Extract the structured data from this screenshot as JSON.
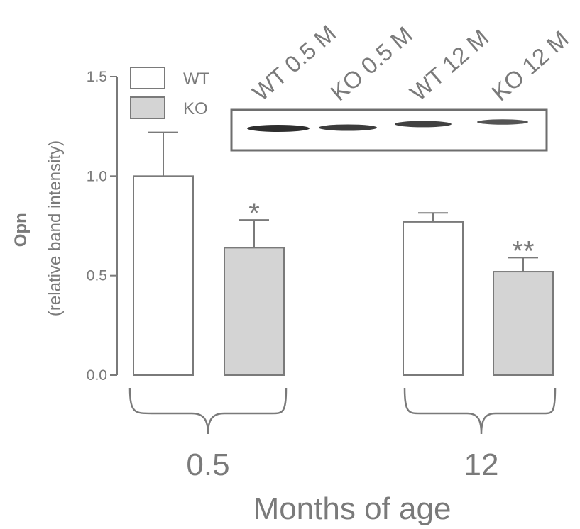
{
  "chart_data": {
    "type": "bar",
    "ylabel_bold": "Opn",
    "ylabel": "(relative band intensity)",
    "xlabel": "Months of age",
    "ylim": [
      0,
      1.5
    ],
    "yticks": [
      "0.0",
      "0.5",
      "1.0",
      "1.5"
    ],
    "categories": [
      "0.5",
      "12"
    ],
    "series": [
      {
        "name": "WT",
        "values": [
          1.0,
          0.77
        ],
        "errors": [
          0.22,
          0.045
        ],
        "color": "#ffffff"
      },
      {
        "name": "KO",
        "values": [
          0.64,
          0.52
        ],
        "errors": [
          0.14,
          0.07
        ],
        "color": "#d4d4d4"
      }
    ],
    "significance": [
      "*",
      "**"
    ],
    "legend_position": "top-left",
    "blot": {
      "lanes": [
        "WT 0.5 M",
        "KO 0.5 M",
        "WT 12 M",
        "KO 12 M"
      ],
      "band_intensity": [
        1.0,
        0.85,
        0.8,
        0.6
      ]
    }
  }
}
